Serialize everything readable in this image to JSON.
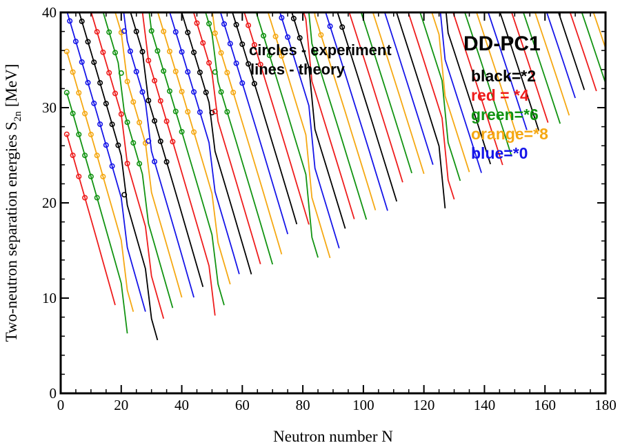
{
  "chart_data": {
    "type": "line",
    "title": "DD-PC1",
    "xlabel": "Neutron  number  N",
    "ylabel_main": "Two-neutron separation energies  S",
    "ylabel_sub": "2n",
    "ylabel_unit": "[MeV]",
    "xlim": [
      0,
      180
    ],
    "ylim": [
      0,
      40
    ],
    "x_ticks": [
      "0",
      "20",
      "40",
      "60",
      "80",
      "100",
      "120",
      "140",
      "160",
      "180"
    ],
    "y_ticks": [
      "0",
      "10",
      "20",
      "30",
      "40"
    ],
    "annotations": {
      "circles": "circles - experiment",
      "lines": "lines - theory"
    },
    "legend": [
      {
        "text": "black=*2",
        "color": "#000000"
      },
      {
        "text": "red = *4",
        "color": "#ee1c1c"
      },
      {
        "text": "green=*6",
        "color": "#119311"
      },
      {
        "text": "orange=*8",
        "color": "#f5a812"
      },
      {
        "text": "blue=*0",
        "color": "#1515e8"
      }
    ],
    "series_colors": [
      "#000000",
      "#ee1c1c",
      "#119311",
      "#f5a812",
      "#1515e8"
    ],
    "shell_closures": [
      20,
      28,
      50,
      82,
      126
    ],
    "grid": false,
    "legend_position": "top-right"
  }
}
